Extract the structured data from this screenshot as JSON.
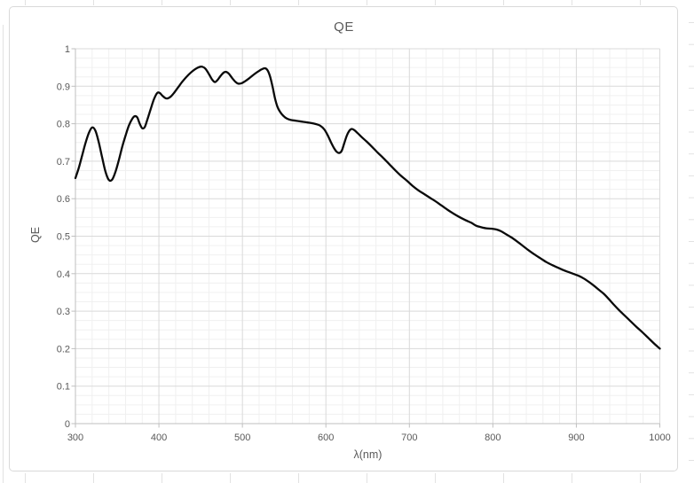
{
  "window": {
    "background": "#ffffff"
  },
  "chart_data": {
    "type": "line",
    "title": "QE",
    "xlabel": "λ(nm)",
    "ylabel": "QE",
    "xlim": [
      300,
      1000
    ],
    "ylim": [
      0,
      1
    ],
    "x_major_ticks": [
      300,
      400,
      500,
      600,
      700,
      800,
      900,
      1000
    ],
    "x_tick_labels": [
      "300",
      "400",
      "500",
      "600",
      "700",
      "800",
      "900",
      "1000"
    ],
    "x_minor_step": 20,
    "y_major_ticks": [
      0,
      0.1,
      0.2,
      0.3,
      0.4,
      0.5,
      0.6,
      0.7,
      0.8,
      0.9,
      1
    ],
    "y_tick_labels": [
      "0",
      "0.1",
      "0.2",
      "0.3",
      "0.4",
      "0.5",
      "0.6",
      "0.7",
      "0.8",
      "0.9",
      "1"
    ],
    "y_minor_step": 0.025,
    "grid": "major+minor both axes",
    "legend": "none",
    "series": [
      {
        "name": "QE",
        "color": "#0a0a0a",
        "points": [
          [
            300,
            0.655
          ],
          [
            304,
            0.682
          ],
          [
            308,
            0.715
          ],
          [
            312,
            0.748
          ],
          [
            316,
            0.775
          ],
          [
            320,
            0.79
          ],
          [
            324,
            0.781
          ],
          [
            328,
            0.75
          ],
          [
            332,
            0.71
          ],
          [
            336,
            0.672
          ],
          [
            340,
            0.65
          ],
          [
            344,
            0.651
          ],
          [
            348,
            0.672
          ],
          [
            352,
            0.703
          ],
          [
            356,
            0.738
          ],
          [
            360,
            0.768
          ],
          [
            364,
            0.795
          ],
          [
            368,
            0.813
          ],
          [
            371,
            0.82
          ],
          [
            374,
            0.817
          ],
          [
            377,
            0.8
          ],
          [
            380,
            0.788
          ],
          [
            383,
            0.791
          ],
          [
            386,
            0.81
          ],
          [
            390,
            0.838
          ],
          [
            394,
            0.865
          ],
          [
            398,
            0.882
          ],
          [
            401,
            0.882
          ],
          [
            404,
            0.875
          ],
          [
            408,
            0.868
          ],
          [
            411,
            0.868
          ],
          [
            414,
            0.872
          ],
          [
            418,
            0.882
          ],
          [
            423,
            0.897
          ],
          [
            428,
            0.912
          ],
          [
            433,
            0.925
          ],
          [
            438,
            0.936
          ],
          [
            443,
            0.945
          ],
          [
            448,
            0.951
          ],
          [
            452,
            0.952
          ],
          [
            456,
            0.946
          ],
          [
            460,
            0.932
          ],
          [
            464,
            0.917
          ],
          [
            467,
            0.911
          ],
          [
            470,
            0.916
          ],
          [
            474,
            0.928
          ],
          [
            478,
            0.937
          ],
          [
            481,
            0.938
          ],
          [
            484,
            0.933
          ],
          [
            488,
            0.921
          ],
          [
            492,
            0.911
          ],
          [
            495,
            0.907
          ],
          [
            499,
            0.908
          ],
          [
            503,
            0.913
          ],
          [
            508,
            0.921
          ],
          [
            513,
            0.93
          ],
          [
            518,
            0.938
          ],
          [
            523,
            0.945
          ],
          [
            527,
            0.948
          ],
          [
            530,
            0.943
          ],
          [
            533,
            0.927
          ],
          [
            536,
            0.9
          ],
          [
            539,
            0.868
          ],
          [
            542,
            0.845
          ],
          [
            545,
            0.832
          ],
          [
            549,
            0.821
          ],
          [
            553,
            0.814
          ],
          [
            558,
            0.81
          ],
          [
            564,
            0.808
          ],
          [
            570,
            0.806
          ],
          [
            576,
            0.804
          ],
          [
            582,
            0.802
          ],
          [
            588,
            0.799
          ],
          [
            593,
            0.795
          ],
          [
            598,
            0.785
          ],
          [
            602,
            0.77
          ],
          [
            606,
            0.751
          ],
          [
            610,
            0.734
          ],
          [
            613,
            0.725
          ],
          [
            616,
            0.722
          ],
          [
            619,
            0.728
          ],
          [
            622,
            0.748
          ],
          [
            625,
            0.768
          ],
          [
            628,
            0.781
          ],
          [
            631,
            0.786
          ],
          [
            634,
            0.783
          ],
          [
            638,
            0.775
          ],
          [
            643,
            0.764
          ],
          [
            649,
            0.752
          ],
          [
            655,
            0.739
          ],
          [
            662,
            0.723
          ],
          [
            669,
            0.708
          ],
          [
            676,
            0.692
          ],
          [
            683,
            0.676
          ],
          [
            690,
            0.661
          ],
          [
            697,
            0.648
          ],
          [
            704,
            0.634
          ],
          [
            711,
            0.622
          ],
          [
            718,
            0.612
          ],
          [
            725,
            0.602
          ],
          [
            732,
            0.592
          ],
          [
            739,
            0.581
          ],
          [
            746,
            0.57
          ],
          [
            753,
            0.56
          ],
          [
            760,
            0.551
          ],
          [
            767,
            0.543
          ],
          [
            774,
            0.536
          ],
          [
            780,
            0.528
          ],
          [
            786,
            0.524
          ],
          [
            792,
            0.521
          ],
          [
            798,
            0.52
          ],
          [
            804,
            0.518
          ],
          [
            810,
            0.513
          ],
          [
            816,
            0.505
          ],
          [
            822,
            0.497
          ],
          [
            829,
            0.486
          ],
          [
            836,
            0.474
          ],
          [
            843,
            0.462
          ],
          [
            850,
            0.451
          ],
          [
            857,
            0.441
          ],
          [
            864,
            0.431
          ],
          [
            871,
            0.423
          ],
          [
            878,
            0.416
          ],
          [
            885,
            0.409
          ],
          [
            891,
            0.404
          ],
          [
            897,
            0.399
          ],
          [
            903,
            0.394
          ],
          [
            909,
            0.387
          ],
          [
            915,
            0.378
          ],
          [
            921,
            0.368
          ],
          [
            927,
            0.357
          ],
          [
            933,
            0.346
          ],
          [
            939,
            0.332
          ],
          [
            945,
            0.317
          ],
          [
            951,
            0.303
          ],
          [
            958,
            0.288
          ],
          [
            965,
            0.273
          ],
          [
            972,
            0.258
          ],
          [
            979,
            0.244
          ],
          [
            986,
            0.229
          ],
          [
            993,
            0.214
          ],
          [
            1000,
            0.2
          ]
        ]
      }
    ]
  },
  "style": {
    "text_color": "#595959",
    "axis_line_color": "#bfbfbf",
    "tick_color": "#bfbfbf",
    "major_grid_color": "#d9d9d9",
    "minor_grid_color": "#f0f0f0",
    "chart_border_color": "#d9d9d9",
    "sheet_gridline_color": "#e2e2e2",
    "series_color": "#0a0a0a"
  }
}
